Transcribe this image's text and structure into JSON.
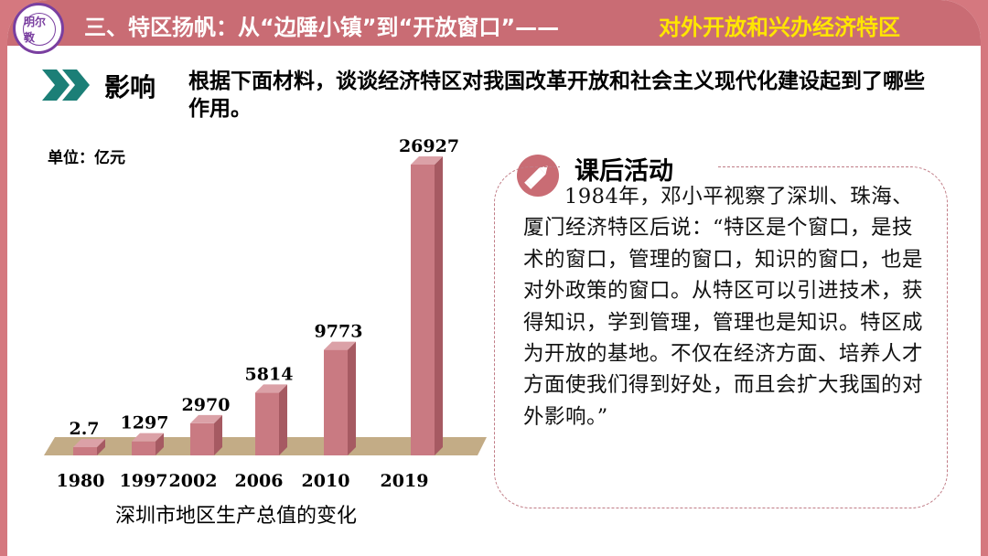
{
  "header": {
    "logo_text": "明尔教",
    "title_main": "三、特区扬帆：从“边陲小镇”到“开放窗口”——",
    "title_highlight": "对外开放和兴办经济特区"
  },
  "section": {
    "label": "影响",
    "question": "根据下面材料，谈谈经济特区对我国改革开放和社会主义现代化建设起到了哪些作用。",
    "icon": "double-chevron-right-icon"
  },
  "chart_data": {
    "type": "bar",
    "title": "深圳市地区生产总值的变化",
    "unit_label": "单位：亿元",
    "categories": [
      "1980",
      "1997",
      "2002",
      "2006",
      "2010",
      "2019"
    ],
    "values": [
      2.7,
      1297,
      2970,
      5814,
      9773,
      26927
    ],
    "value_labels": [
      "2.7",
      "1297",
      "2970",
      "5814",
      "9773",
      "26927"
    ],
    "bar_color": "#c97a82",
    "floor_color": "#c3ac86"
  },
  "activity": {
    "title": "课后活动",
    "icon": "pencil-icon",
    "text": "1984年，邓小平视察了深圳、珠海、厦门经济特区后说：“特区是个窗口，是技术的窗口，管理的窗口，知识的窗口，也是对外政策的窗口。从特区可以引进技术，获得知识，学到管理，管理也是知识。特区成为开放的基地。不仅在经济方面、培养人才方面使我们得到好处，而且会扩大我国的对外影响。”"
  },
  "colors": {
    "frame": "#d5787f",
    "header": "#c96c74",
    "highlight": "#ffe600",
    "chevron": "#1c7f77"
  }
}
